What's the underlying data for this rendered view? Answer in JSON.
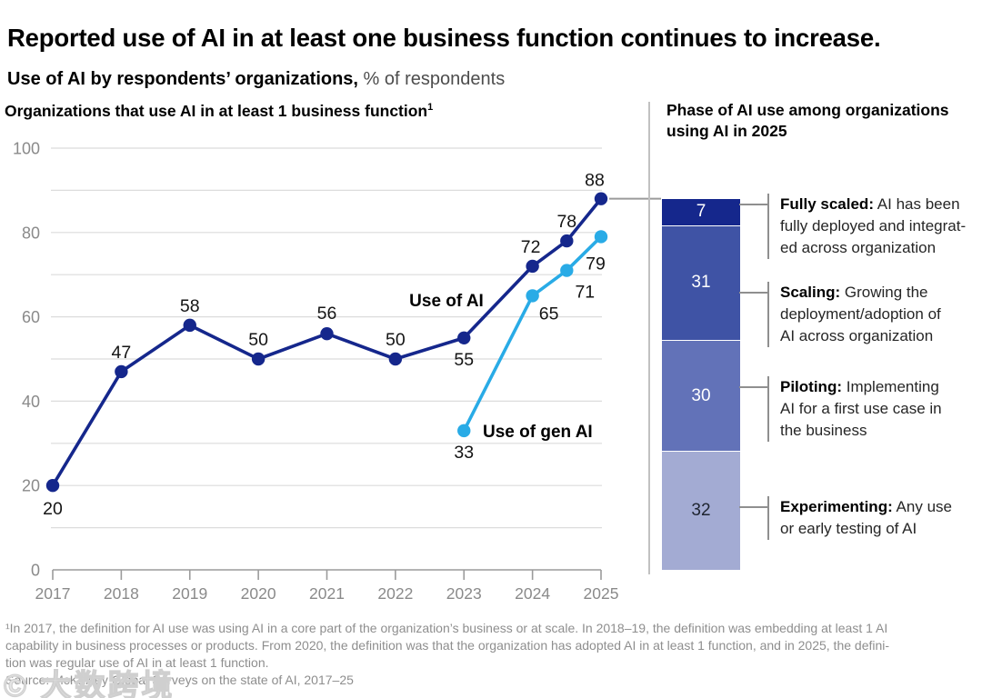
{
  "header": {
    "title": "Reported use of AI in at least one business function continues to increase.",
    "subtitle_bold": "Use of AI by respondents’ organizations,",
    "subtitle_rest": " % of respondents"
  },
  "chart_data": [
    {
      "type": "line",
      "title": "Organizations that use AI in at least 1 business function",
      "title_superscript": "1",
      "unit": "% of respondents",
      "xlim": [
        2017,
        2025
      ],
      "ylim": [
        0,
        100
      ],
      "x_ticks": [
        2017,
        2018,
        2019,
        2020,
        2021,
        2022,
        2023,
        2024,
        2025
      ],
      "y_ticks": [
        0,
        20,
        40,
        60,
        80,
        100
      ],
      "grid_step": 10,
      "grid_on": true,
      "series": [
        {
          "name": "Use of AI",
          "color": "#15278C",
          "points": [
            {
              "x": 2017,
              "y": 20,
              "label": "20",
              "label_offset": [
                0,
                32
              ]
            },
            {
              "x": 2018,
              "y": 47,
              "label": "47",
              "label_offset": [
                0,
                -15
              ]
            },
            {
              "x": 2019,
              "y": 58,
              "label": "58",
              "label_offset": [
                0,
                -15
              ]
            },
            {
              "x": 2020,
              "y": 50,
              "label": "50",
              "label_offset": [
                0,
                -15
              ]
            },
            {
              "x": 2021,
              "y": 56,
              "label": "56",
              "label_offset": [
                0,
                -16
              ]
            },
            {
              "x": 2022,
              "y": 50,
              "label": "50",
              "label_offset": [
                0,
                -15
              ]
            },
            {
              "x": 2023,
              "y": 55,
              "label": "55",
              "label_offset": [
                0,
                30
              ]
            },
            {
              "x": 2024,
              "y": 72,
              "label": "72",
              "label_offset": [
                -2,
                -15
              ]
            },
            {
              "x": 2024.5,
              "y": 78,
              "label": "78",
              "label_offset": [
                0,
                -15
              ]
            },
            {
              "x": 2025,
              "y": 88,
              "label": "88",
              "label_offset": [
                -7,
                -14
              ]
            }
          ],
          "series_label": {
            "text": "Use of AI",
            "x": 491,
            "y": 337,
            "anchor": "middle"
          }
        },
        {
          "name": "Use of gen AI",
          "color": "#29ABE6",
          "points": [
            {
              "x": 2023,
              "y": 33,
              "label": "33",
              "label_offset": [
                0,
                30
              ]
            },
            {
              "x": 2024,
              "y": 65,
              "label": "65",
              "label_offset": [
                18,
                26
              ]
            },
            {
              "x": 2024.5,
              "y": 71,
              "label": "71",
              "label_offset": [
                20,
                30
              ]
            },
            {
              "x": 2025,
              "y": 79,
              "label": "79",
              "label_offset": [
                -6,
                36
              ]
            }
          ],
          "series_label": {
            "text": "Use of gen AI",
            "x": 531,
            "y": 481,
            "anchor": "start"
          }
        }
      ]
    },
    {
      "type": "stacked-bar",
      "title": "Phase of AI use among organizations\nusing AI in 2025",
      "total": 100,
      "anchor_value": 88,
      "segments": [
        {
          "term": "Fully scaled:",
          "value": 7,
          "color": "#15278C",
          "value_color": "#FFFFFF",
          "definition": "AI has been\nfully deployed and integrat-\ned across organization",
          "label_top": 213
        },
        {
          "term": "Scaling:",
          "value": 31,
          "color": "#3F53A5",
          "value_color": "#FFFFFF",
          "definition": "Growing the\ndeployment/adoption of\nAI across organization",
          "label_top": 310
        },
        {
          "term": "Piloting:",
          "value": 30,
          "color": "#6272B8",
          "value_color": "#FFFFFF",
          "definition": "Implementing\nAI for a first use case in\nthe business",
          "label_top": 414
        },
        {
          "term": "Experimenting:",
          "value": 32,
          "color": "#A3ABD3",
          "value_color": "#1E2430",
          "definition": "Any use\nor early testing of AI",
          "label_top": 546
        }
      ]
    }
  ],
  "footnote": {
    "lines": [
      "¹In 2017, the definition for AI use was using AI in a core part of the organization’s business or at scale. In 2018–19, the definition was embedding at least 1 AI",
      "capability in business processes or products. From 2020, the definition was that the organization has adopted AI in at least 1 function, and in 2025, the defini-",
      "tion was regular use of AI in at least 1 function."
    ],
    "source": "Source: McKinsey Global Surveys on the state of AI, 2017–25"
  },
  "watermark": {
    "text": "© 大数跨境"
  }
}
